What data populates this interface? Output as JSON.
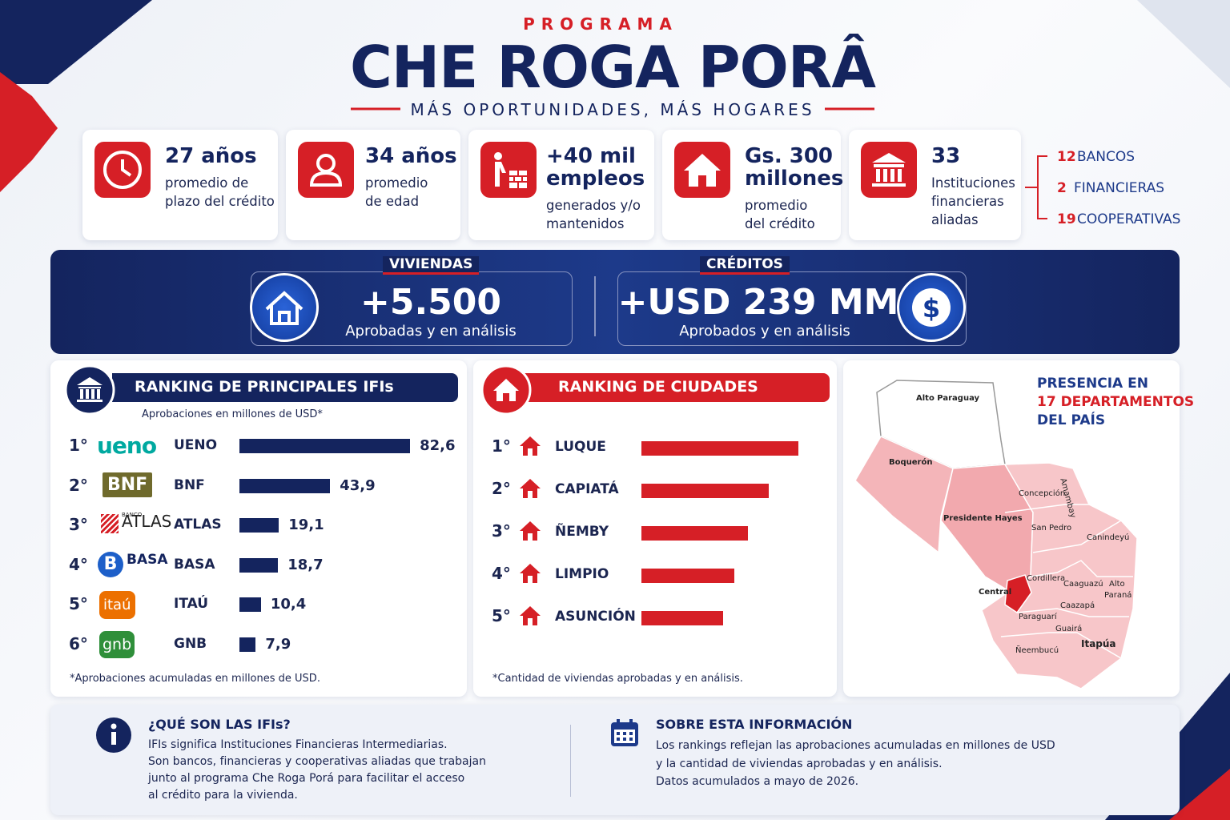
{
  "header": {
    "kicker": "PROGRAMA",
    "title": "CHE ROGA PORÂ",
    "subtitle": "MÁS OPORTUNIDADES, MÁS HOGARES"
  },
  "stats": [
    {
      "value": [
        "27 años"
      ],
      "desc": [
        "promedio de",
        "plazo del crédito"
      ]
    },
    {
      "value": [
        "34 años"
      ],
      "desc": [
        "promedio",
        "de edad"
      ]
    },
    {
      "value": [
        "+40 mil",
        "empleos"
      ],
      "desc": [
        "generados y/o",
        "mantenidos"
      ]
    },
    {
      "value": [
        "Gs. 300",
        "millones"
      ],
      "desc": [
        "promedio",
        "del crédito"
      ]
    },
    {
      "value": [
        "33"
      ],
      "desc": [
        "Instituciones",
        "financieras",
        "aliadas"
      ]
    }
  ],
  "institutions_breakdown": [
    {
      "count": 12,
      "label": "BANCOS"
    },
    {
      "count": 2,
      "label": "FINANCIERAS"
    },
    {
      "count": 19,
      "label": "COOPERATIVAS"
    }
  ],
  "highlights": [
    {
      "label": "VIVIENDAS",
      "value": "+5.500",
      "caption": "Aprobadas y en análisis"
    },
    {
      "label": "CRÉDITOS",
      "value": "+USD 239 MM",
      "caption": "Aprobados y en análisis"
    }
  ],
  "ranking_ifis": {
    "title": "RANKING DE PRINCIPALES IFIs",
    "subtitle": "Aprobaciones en millones de USD*",
    "items": [
      {
        "rank": "1°",
        "logo": "ueno",
        "name": "UENO",
        "value": 82.6,
        "label": "82,6"
      },
      {
        "rank": "2°",
        "logo": "BNF",
        "name": "BNF",
        "value": 43.9,
        "label": "43,9"
      },
      {
        "rank": "3°",
        "logo": "ATLAS",
        "logo_small": "BANCO",
        "name": "ATLAS",
        "value": 19.1,
        "label": "19,1"
      },
      {
        "rank": "4°",
        "logo": "BASA",
        "logo_mark": "B",
        "name": "BASA",
        "value": 18.7,
        "label": "18,7"
      },
      {
        "rank": "5°",
        "logo": "itaú",
        "name": "ITAÚ",
        "value": 10.4,
        "label": "10,4"
      },
      {
        "rank": "6°",
        "logo": "gnb",
        "name": "GNB",
        "value": 7.9,
        "label": "7,9"
      }
    ],
    "footnote": "*Aprobaciones acumuladas en millones de USD."
  },
  "ranking_ciudades": {
    "title": "RANKING DE CIUDADES",
    "items": [
      {
        "rank": "1°",
        "name": "LUQUE",
        "value": 100
      },
      {
        "rank": "2°",
        "name": "CAPIATÁ",
        "value": 81
      },
      {
        "rank": "3°",
        "name": "ÑEMBY",
        "value": 68
      },
      {
        "rank": "4°",
        "name": "LIMPIO",
        "value": 59
      },
      {
        "rank": "5°",
        "name": "ASUNCIÓN",
        "value": 52
      }
    ],
    "footnote": "*Cantidad de viviendas aprobadas y en análisis."
  },
  "map": {
    "title": [
      "PRESENCIA EN",
      "17 DEPARTAMENTOS",
      "DEL PAÍS"
    ],
    "departments": [
      "Alto Paraguay",
      "Boquerón",
      "Presidente Hayes",
      "Concepción",
      "Amambay",
      "San Pedro",
      "Canindeyú",
      "Cordillera",
      "Caaguazú",
      "Alto",
      "Paraná",
      "Central",
      "Caazapá",
      "Paraguarí",
      "Guairá",
      "Itapúa",
      "Ñeembucú"
    ]
  },
  "info": [
    {
      "title": "¿QUÉ SON LAS IFIs?",
      "lines": [
        "IFIs significa Instituciones Financieras Intermediarias.",
        "Son bancos, financieras y cooperativas aliadas que trabajan",
        "junto al programa Che Roga Porá para facilitar el acceso",
        "al crédito para la vivienda."
      ]
    },
    {
      "title": "SOBRE ESTA INFORMACIÓN",
      "lines": [
        "Los rankings reflejan las aprobaciones acumuladas en millones de USD",
        "y la cantidad de viviendas aprobadas y en análisis.",
        "Datos acumulados a mayo de 2026."
      ]
    }
  ]
}
